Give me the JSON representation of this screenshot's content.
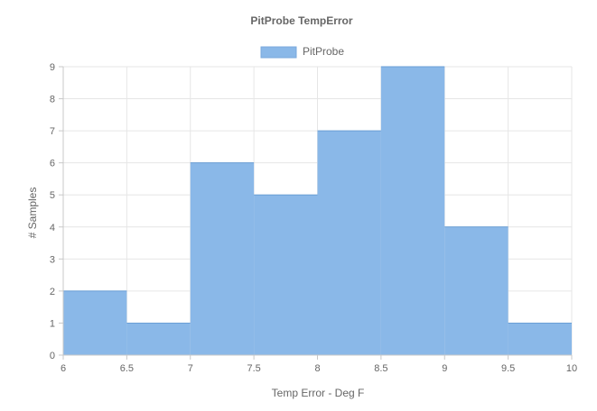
{
  "chart_data": {
    "type": "bar",
    "title": "PitProbe TempError",
    "xlabel": "Temp Error - Deg F",
    "ylabel": "# Samples",
    "xlim": [
      6,
      10
    ],
    "ylim": [
      0,
      9
    ],
    "x_ticks": [
      "6",
      "6.5",
      "7",
      "7.5",
      "8",
      "8.5",
      "9",
      "9.5",
      "10"
    ],
    "y_ticks": [
      "0",
      "1",
      "2",
      "3",
      "4",
      "5",
      "6",
      "7",
      "8",
      "9"
    ],
    "bins": [
      [
        6,
        6.5
      ],
      [
        6.5,
        7
      ],
      [
        7,
        7.5
      ],
      [
        7.5,
        8
      ],
      [
        8,
        8.5
      ],
      [
        8.5,
        9
      ],
      [
        9,
        9.5
      ],
      [
        9.5,
        10
      ]
    ],
    "series": [
      {
        "name": "PitProbe",
        "color": "#8ab8e8",
        "values": [
          2,
          1,
          6,
          5,
          7,
          9,
          4,
          1
        ]
      }
    ],
    "legend_position": "top",
    "grid": true
  }
}
